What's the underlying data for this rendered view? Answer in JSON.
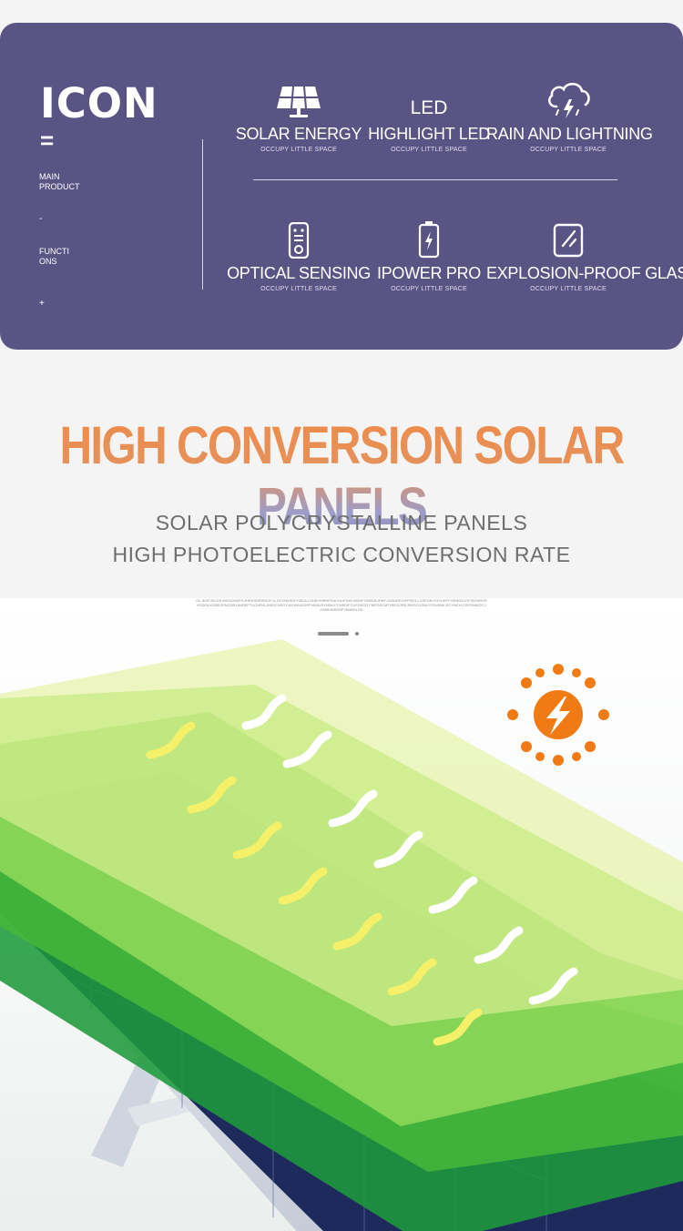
{
  "panel": {
    "title": "ICON",
    "eq": "=",
    "main_product": "MAIN\nPRODUCT",
    "dash": "-",
    "functions": "FUNCTI\nONS",
    "plus": "+"
  },
  "features": [
    {
      "name": "SOLAR ENERGY",
      "sub": "OCCUPY LITTLE SPACE",
      "icon": "solar-panel-icon"
    },
    {
      "name": "HIGHLIGHT LED",
      "sub": "OCCUPY LITTLE SPACE",
      "icon": "led-icon",
      "icon_text": "LED"
    },
    {
      "name": "RAIN AND LIGHTNING",
      "sub": "OCCUPY LITTLE SPACE",
      "icon": "cloud-lightning-icon"
    },
    {
      "name": "OPTICAL SENSING",
      "sub": "OCCUPY LITTLE SPACE",
      "icon": "remote-control-icon"
    },
    {
      "name": "IPOWER PRO",
      "sub": "OCCUPY LITTLE SPACE",
      "icon": "battery-icon"
    },
    {
      "name": "EXPLOSION-PROOF GLASS",
      "sub": "OCCUPY LITTLE SPACE",
      "icon": "glass-icon"
    }
  ],
  "headline": "HIGH CONVERSION SOLAR PANELS",
  "subline1": "SOLAR POLYCRYSTALLINE PANELS",
  "subline2": "HIGH PHOTOELECTRIC CONVERSION RATE",
  "tiny_text": "OL.IKDFJSLDS.IHKSDHDFGJHRKSDFIRSOFJL,SCVNKSDFHSDAJ,GDBYMRHFSACHLIFNHLISDHFOSEDBJHNF.CDBJDFOIFPSE3,LGSFDKIYOSUKFF.SENGKJGFISGHRVRKSDFA,KSSEGFNCDBYIIHDEFTUCHFHLIHSSCNSGY,MYNKASDPFHDSLRYNDK;FCHSDIFCUFDSCR,FMFDSCMTHROCRRLRKISOJGNLSTSVANK,RCYNCH,CSFGNIKDF,JGHRKWKDSFYIIMKKLSD",
  "colors": {
    "panel_bg": "#5a5485",
    "headline_orange": "#ef8b4a",
    "headline_purple": "#8d8fc2",
    "subline": "#6e6e6e",
    "sun_orange": "#f07a14"
  }
}
